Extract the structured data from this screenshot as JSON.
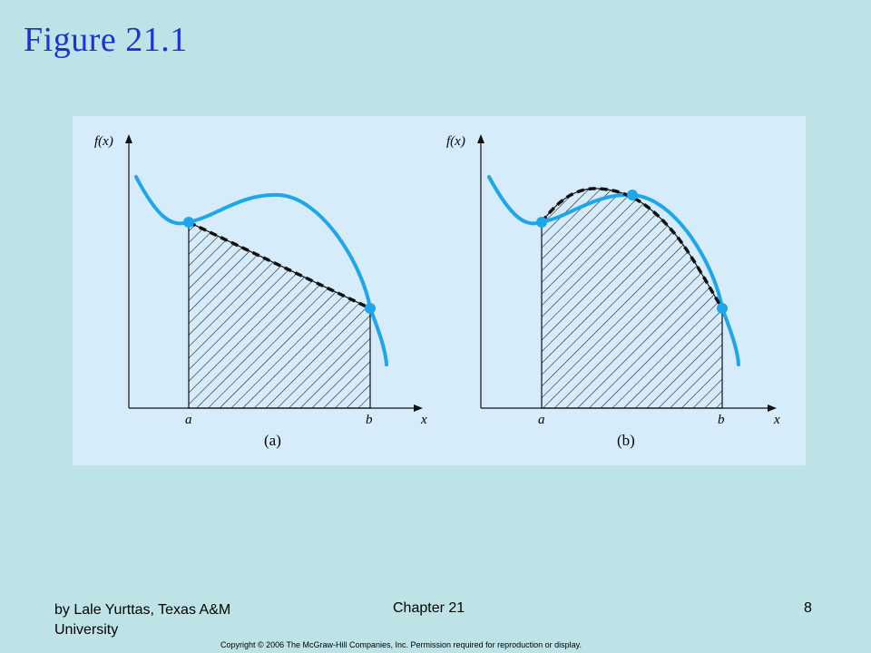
{
  "slide": {
    "title": "Figure 21.1"
  },
  "figure": {
    "panels": [
      {
        "id": "a",
        "ylabel": "f(x)",
        "xlabel": "x",
        "left_limit": "a",
        "right_limit": "b",
        "caption": "(a)"
      },
      {
        "id": "b",
        "ylabel": "f(x)",
        "xlabel": "x",
        "left_limit": "a",
        "right_limit": "b",
        "caption": "(b)"
      }
    ],
    "colors": {
      "curve": "#1ea6ea",
      "approximation": "#111111",
      "hatch": "#111111",
      "background": "#d6ecfa"
    }
  },
  "footer": {
    "author": "by Lale Yurttas, Texas A&M University",
    "chapter": "Chapter 21",
    "page": "8",
    "copyright": "Copyright © 2006 The McGraw-Hill Companies, Inc.  Permission required for reproduction or display."
  }
}
